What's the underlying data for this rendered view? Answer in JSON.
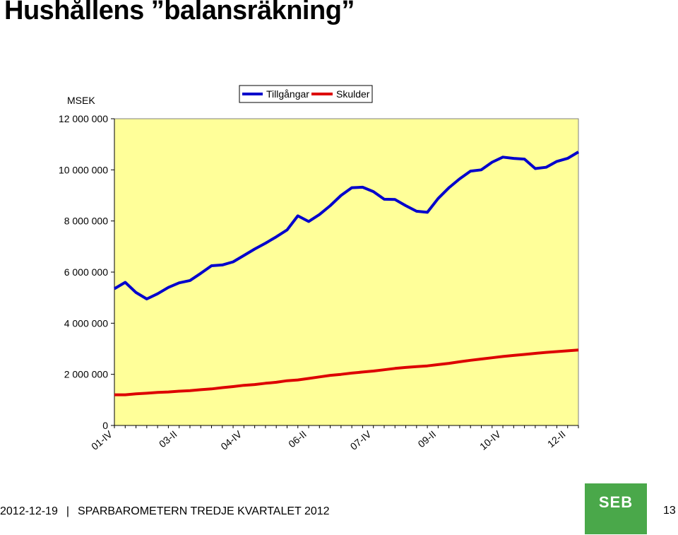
{
  "page": {
    "title": "Hushållens  ”balansräkning”",
    "footer_date": "2012-12-19",
    "footer_separator": "|",
    "footer_text": "SPARBAROMETERN TREDJE KVARTALET 2012",
    "page_number": "13",
    "logo_text": "SEB"
  },
  "colors": {
    "plot_bg": "#ffff99",
    "assets": "#0000cc",
    "debts": "#dd0000",
    "logo": "#4aa84a"
  },
  "chart_data": {
    "type": "line",
    "title": "",
    "ylabel": "MSEK",
    "xlabel": "",
    "ylim": [
      0,
      12000000
    ],
    "yticks": [
      0,
      2000000,
      4000000,
      6000000,
      8000000,
      10000000,
      12000000
    ],
    "ytick_labels": [
      "0",
      "2 000 000",
      "4 000 000",
      "6 000 000",
      "8 000 000",
      "10 000 000",
      "12 000 000"
    ],
    "x": [
      "01-IV",
      "02-I",
      "02-II",
      "02-III",
      "02-IV",
      "03-I",
      "03-II",
      "03-III",
      "03-IV",
      "04-I",
      "04-II",
      "04-III",
      "04-IV",
      "05-I",
      "05-II",
      "05-III",
      "05-IV",
      "06-I",
      "06-II",
      "06-III",
      "06-IV",
      "07-I",
      "07-II",
      "07-III",
      "07-IV",
      "08-I",
      "08-II",
      "08-III",
      "08-IV",
      "09-I",
      "09-II",
      "09-III",
      "09-IV",
      "10-I",
      "10-II",
      "10-III",
      "10-IV",
      "11-I",
      "11-II",
      "11-III",
      "11-IV",
      "12-I",
      "12-II",
      "12-III"
    ],
    "xtick_labels": [
      {
        "label": "01-IV",
        "index": 0
      },
      {
        "label": "03-II",
        "index": 6
      },
      {
        "label": "04-IV",
        "index": 12
      },
      {
        "label": "06-II",
        "index": 18
      },
      {
        "label": "07-IV",
        "index": 24
      },
      {
        "label": "09-II",
        "index": 30
      },
      {
        "label": "10-IV",
        "index": 36
      },
      {
        "label": "12-II",
        "index": 42
      }
    ],
    "legend": "top-center",
    "series": [
      {
        "name": "Tillgångar",
        "color": "#0000cc",
        "values": [
          5350000,
          5600000,
          5200000,
          4950000,
          5150000,
          5400000,
          5580000,
          5670000,
          5950000,
          6250000,
          6280000,
          6400000,
          6650000,
          6900000,
          7130000,
          7380000,
          7650000,
          8200000,
          7980000,
          8250000,
          8600000,
          9000000,
          9300000,
          9320000,
          9150000,
          8850000,
          8840000,
          8600000,
          8380000,
          8340000,
          8880000,
          9300000,
          9650000,
          9950000,
          10000000,
          10300000,
          10500000,
          10450000,
          10420000,
          10050000,
          10100000,
          10330000,
          10450000,
          10700000
        ]
      },
      {
        "name": "Skulder",
        "color": "#dd0000",
        "values": [
          1200000,
          1200000,
          1240000,
          1260000,
          1290000,
          1310000,
          1340000,
          1360000,
          1400000,
          1430000,
          1480000,
          1520000,
          1570000,
          1600000,
          1650000,
          1690000,
          1750000,
          1780000,
          1840000,
          1900000,
          1960000,
          2000000,
          2050000,
          2090000,
          2130000,
          2180000,
          2230000,
          2270000,
          2300000,
          2330000,
          2380000,
          2430000,
          2490000,
          2550000,
          2600000,
          2650000,
          2700000,
          2740000,
          2780000,
          2820000,
          2860000,
          2890000,
          2920000,
          2950000
        ]
      }
    ]
  }
}
